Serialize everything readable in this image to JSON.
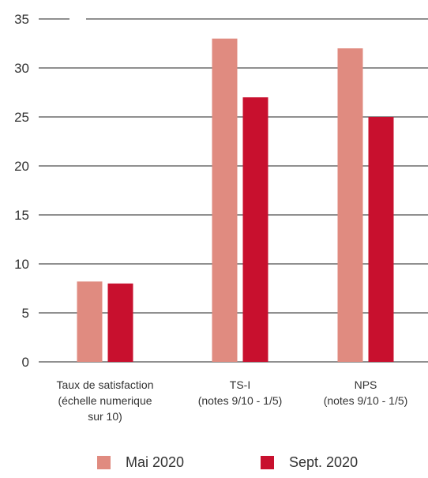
{
  "chart_data": {
    "type": "bar",
    "categories": [
      [
        "Taux de satisfaction",
        "(échelle numerique",
        "sur 10)"
      ],
      [
        "TS-I",
        "(notes 9/10 - 1/5)"
      ],
      [
        "NPS",
        "(notes 9/10 - 1/5)"
      ]
    ],
    "series": [
      {
        "name": "Mai 2020",
        "color": "#e08b80",
        "values": [
          8.2,
          33,
          32
        ]
      },
      {
        "name": "Sept. 2020",
        "color": "#c8102e",
        "values": [
          8,
          27,
          25
        ]
      }
    ],
    "ylim": [
      0,
      35
    ],
    "yticks": [
      0,
      5,
      10,
      15,
      20,
      25,
      30,
      35
    ],
    "grid": true,
    "legend_position": "bottom"
  }
}
